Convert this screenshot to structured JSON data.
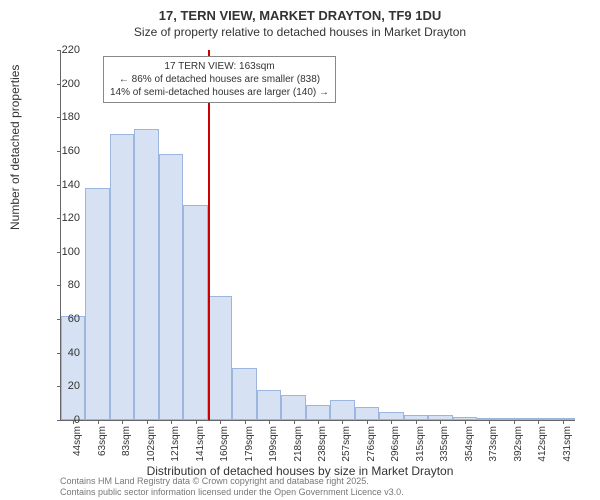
{
  "title": "17, TERN VIEW, MARKET DRAYTON, TF9 1DU",
  "subtitle": "Size of property relative to detached houses in Market Drayton",
  "ylabel": "Number of detached properties",
  "xlabel": "Distribution of detached houses by size in Market Drayton",
  "attribution_line1": "Contains HM Land Registry data © Crown copyright and database right 2025.",
  "attribution_line2": "Contains public sector information licensed under the Open Government Licence v3.0.",
  "chart": {
    "type": "histogram",
    "ylim": [
      0,
      220
    ],
    "ytick_step": 20,
    "yticks": [
      0,
      20,
      40,
      60,
      80,
      100,
      120,
      140,
      160,
      180,
      200,
      220
    ],
    "xtick_labels": [
      "44sqm",
      "63sqm",
      "83sqm",
      "102sqm",
      "121sqm",
      "141sqm",
      "160sqm",
      "179sqm",
      "199sqm",
      "218sqm",
      "238sqm",
      "257sqm",
      "276sqm",
      "296sqm",
      "315sqm",
      "335sqm",
      "354sqm",
      "373sqm",
      "392sqm",
      "412sqm",
      "431sqm"
    ],
    "bar_values": [
      62,
      138,
      170,
      173,
      158,
      128,
      74,
      31,
      18,
      15,
      9,
      12,
      8,
      5,
      3,
      3,
      2,
      1,
      1,
      1,
      1
    ],
    "bar_fill": "#d6e2f3",
    "bar_border": "#9db6dd",
    "background_color": "#ffffff",
    "axis_color": "#666666",
    "tick_fontsize": 10,
    "label_fontsize": 12,
    "title_fontsize": 13,
    "marker": {
      "color": "#cc0000",
      "position_index": 6,
      "annotation_lines": [
        "17 TERN VIEW: 163sqm",
        "← 86% of detached houses are smaller (838)",
        "14% of semi-detached houses are larger (140) →"
      ]
    }
  }
}
